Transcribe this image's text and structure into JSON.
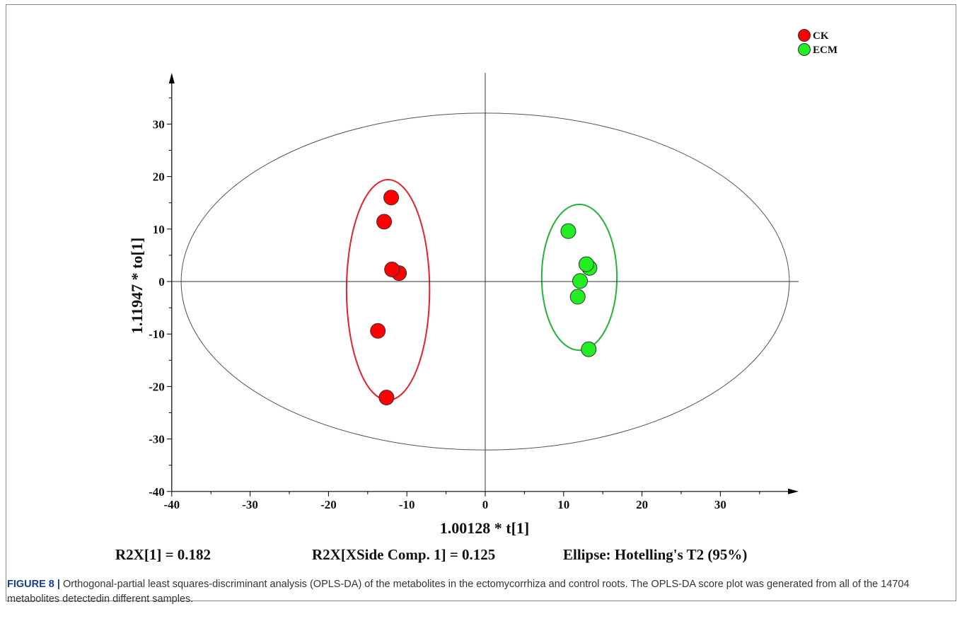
{
  "chart_data": {
    "type": "scatter",
    "title": "",
    "xlabel": "1.00128 * t[1]",
    "ylabel": "1.11947 * to[1]",
    "xlim": [
      -40,
      40
    ],
    "ylim": [
      -40,
      40
    ],
    "x_ticks": [
      -40,
      -30,
      -20,
      -10,
      0,
      10,
      20,
      30
    ],
    "y_ticks": [
      -40,
      -30,
      -20,
      -10,
      0,
      10,
      20,
      30
    ],
    "legend_position": "top-right",
    "series": [
      {
        "name": "CK",
        "color": "#ff0000",
        "ellipse_color": "#e8202a",
        "points": [
          {
            "x": -12.0,
            "y": 16.0
          },
          {
            "x": -12.9,
            "y": 11.4
          },
          {
            "x": -11.0,
            "y": 1.6
          },
          {
            "x": -11.9,
            "y": 2.3
          },
          {
            "x": -13.7,
            "y": -9.4
          },
          {
            "x": -12.6,
            "y": -22.1
          }
        ],
        "ellipse": {
          "cx": -12.4,
          "cy": -1.6,
          "rx": 5.3,
          "ry": 21.0
        }
      },
      {
        "name": "ECM",
        "color": "#22ee22",
        "ellipse_color": "#23b33a",
        "points": [
          {
            "x": 10.6,
            "y": 9.6
          },
          {
            "x": 13.3,
            "y": 2.6
          },
          {
            "x": 12.9,
            "y": 3.3
          },
          {
            "x": 12.1,
            "y": 0.1
          },
          {
            "x": 11.8,
            "y": -2.9
          },
          {
            "x": 13.2,
            "y": -12.9
          }
        ],
        "ellipse": {
          "cx": 12.0,
          "cy": 0.8,
          "rx": 4.8,
          "ry": 13.9
        }
      }
    ],
    "hotelling_ellipse": {
      "cx": 0,
      "cy": 0,
      "rx": 38.8,
      "ry": 32.1
    },
    "annotations": {
      "r2x": "R2X[1] = 0.182",
      "r2x_side": "R2X[XSide Comp. 1] = 0.125",
      "ellipse_note": "Ellipse: Hotelling's T2 (95%)"
    }
  },
  "caption": {
    "label": "FIGURE 8 |",
    "text": " Orthogonal-partial least squares-discriminant analysis (OPLS-DA) of the metabolites in the ectomycorrhiza and control roots. The OPLS-DA score plot was generated from all of the 14704 metabolites detectedin different samples."
  }
}
